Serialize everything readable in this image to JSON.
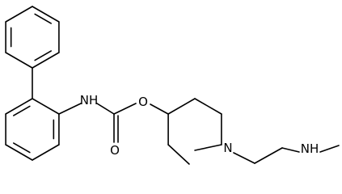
{
  "atoms": [
    {
      "label": "NH"
    },
    {
      "label": "O"
    },
    {
      "label": "O"
    },
    {
      "label": "N"
    },
    {
      "label": "NH"
    }
  ]
}
